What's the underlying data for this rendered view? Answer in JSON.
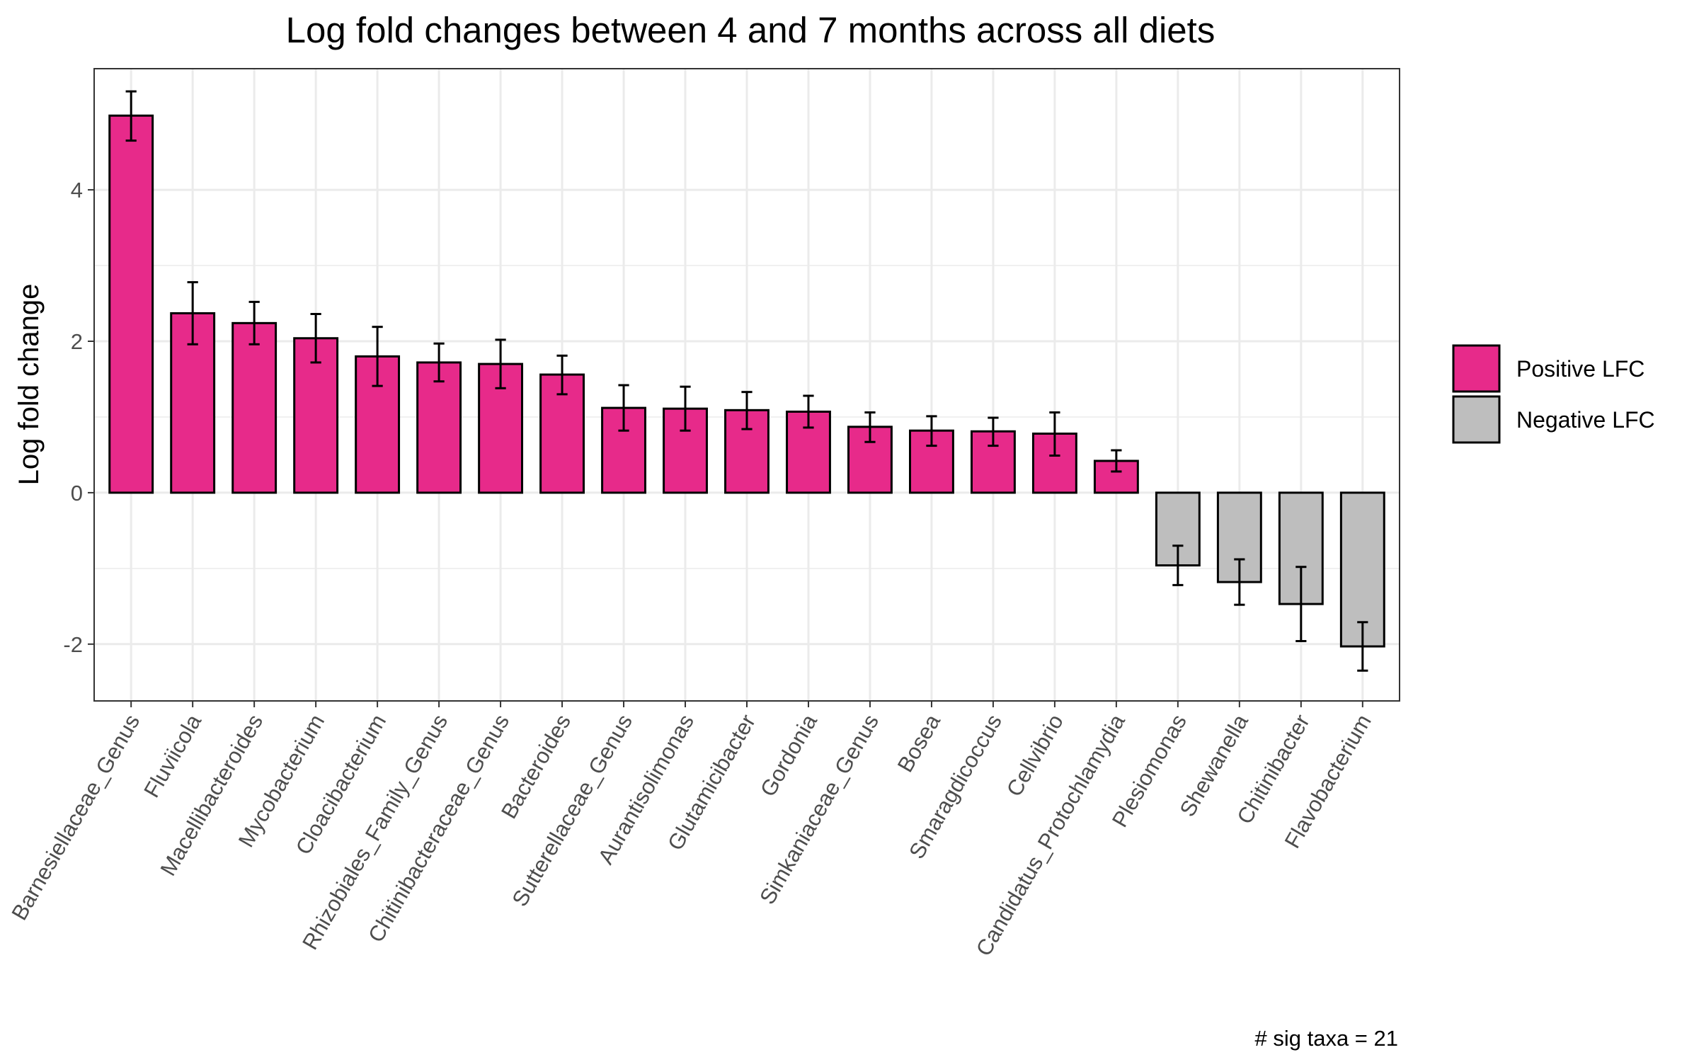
{
  "chart_data": {
    "type": "bar",
    "title": "Log fold changes between 4 and 7 months across all diets",
    "xlabel": "",
    "ylabel": "Log fold change",
    "caption": "# sig taxa = 21",
    "ylim": [
      -2.75,
      5.6
    ],
    "yticks": [
      -2,
      0,
      2,
      4
    ],
    "ytick_labels": [
      "-2",
      "0",
      "2",
      "4"
    ],
    "grid": true,
    "legend_position": "right",
    "colors": {
      "positive": "#e72a8a",
      "negative": "#bebebe",
      "bar_outline": "#000000",
      "grid": "#ebebeb",
      "panel_border": "#333333"
    },
    "legend": [
      {
        "label": "Positive LFC",
        "color": "#e72a8a"
      },
      {
        "label": "Negative LFC",
        "color": "#bebebe"
      }
    ],
    "categories": [
      "Barnesiellaceae_Genus",
      "Fluviicola",
      "Macellibacteroides",
      "Mycobacterium",
      "Cloacibacterium",
      "Rhizobiales_Family_Genus",
      "Chitinibacteraceae_Genus",
      "Bacteroides",
      "Sutterellaceae_Genus",
      "Aurantisolimonas",
      "Glutamicibacter",
      "Gordonia",
      "Simkaniaceae_Genus",
      "Bosea",
      "Smaragdicoccus",
      "Cellvibrio",
      "Candidatus_Protochlamydia",
      "Plesiomonas",
      "Shewanella",
      "Chitinibacter",
      "Flavobacterium"
    ],
    "values": [
      4.98,
      2.37,
      2.24,
      2.04,
      1.8,
      1.72,
      1.7,
      1.56,
      1.12,
      1.11,
      1.09,
      1.07,
      0.87,
      0.82,
      0.81,
      0.78,
      0.42,
      -0.96,
      -1.18,
      -1.47,
      -2.03
    ],
    "error_low": [
      4.65,
      1.96,
      1.96,
      1.72,
      1.41,
      1.47,
      1.38,
      1.3,
      0.82,
      0.82,
      0.84,
      0.86,
      0.67,
      0.62,
      0.62,
      0.49,
      0.28,
      -1.22,
      -1.48,
      -1.96,
      -2.35
    ],
    "error_high": [
      5.3,
      2.78,
      2.52,
      2.36,
      2.19,
      1.97,
      2.02,
      1.81,
      1.42,
      1.4,
      1.33,
      1.28,
      1.06,
      1.01,
      0.99,
      1.06,
      0.56,
      -0.7,
      -0.88,
      -0.98,
      -1.71
    ]
  }
}
